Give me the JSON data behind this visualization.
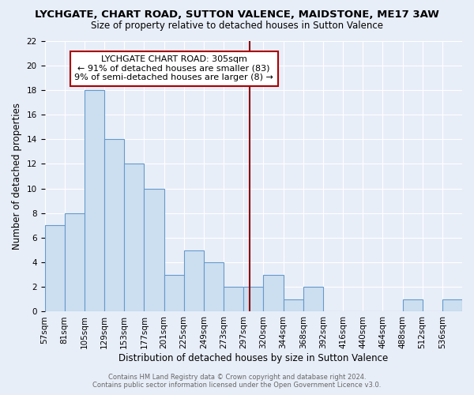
{
  "title": "LYCHGATE, CHART ROAD, SUTTON VALENCE, MAIDSTONE, ME17 3AW",
  "subtitle": "Size of property relative to detached houses in Sutton Valence",
  "xlabel": "Distribution of detached houses by size in Sutton Valence",
  "ylabel": "Number of detached properties",
  "bar_values": [
    7,
    8,
    18,
    14,
    12,
    10,
    3,
    5,
    4,
    2,
    2,
    3,
    1,
    2,
    0,
    0,
    0,
    0,
    1,
    0,
    1
  ],
  "bin_labels": [
    "57sqm",
    "81sqm",
    "105sqm",
    "129sqm",
    "153sqm",
    "177sqm",
    "201sqm",
    "225sqm",
    "249sqm",
    "273sqm",
    "297sqm",
    "320sqm",
    "344sqm",
    "368sqm",
    "392sqm",
    "416sqm",
    "440sqm",
    "464sqm",
    "488sqm",
    "512sqm",
    "536sqm"
  ],
  "bar_color": "#ccdff0",
  "bar_edge_color": "#6699cc",
  "vline_color": "#8b0000",
  "annotation_title": "LYCHGATE CHART ROAD: 305sqm",
  "annotation_line1": "← 91% of detached houses are smaller (83)",
  "annotation_line2": "9% of semi-detached houses are larger (8) →",
  "annotation_box_color": "#ffffff",
  "annotation_box_edge": "#aa0000",
  "ylim": [
    0,
    22
  ],
  "yticks": [
    0,
    2,
    4,
    6,
    8,
    10,
    12,
    14,
    16,
    18,
    20,
    22
  ],
  "footer1": "Contains HM Land Registry data © Crown copyright and database right 2024.",
  "footer2": "Contains public sector information licensed under the Open Government Licence v3.0.",
  "bg_color": "#e8eef8",
  "grid_color": "#ffffff",
  "title_fontsize": 9.5,
  "subtitle_fontsize": 8.5,
  "ylabel_fontsize": 8.5,
  "xlabel_fontsize": 8.5,
  "tick_fontsize": 7.5,
  "ann_fontsize": 8.0,
  "footer_fontsize": 6.0
}
